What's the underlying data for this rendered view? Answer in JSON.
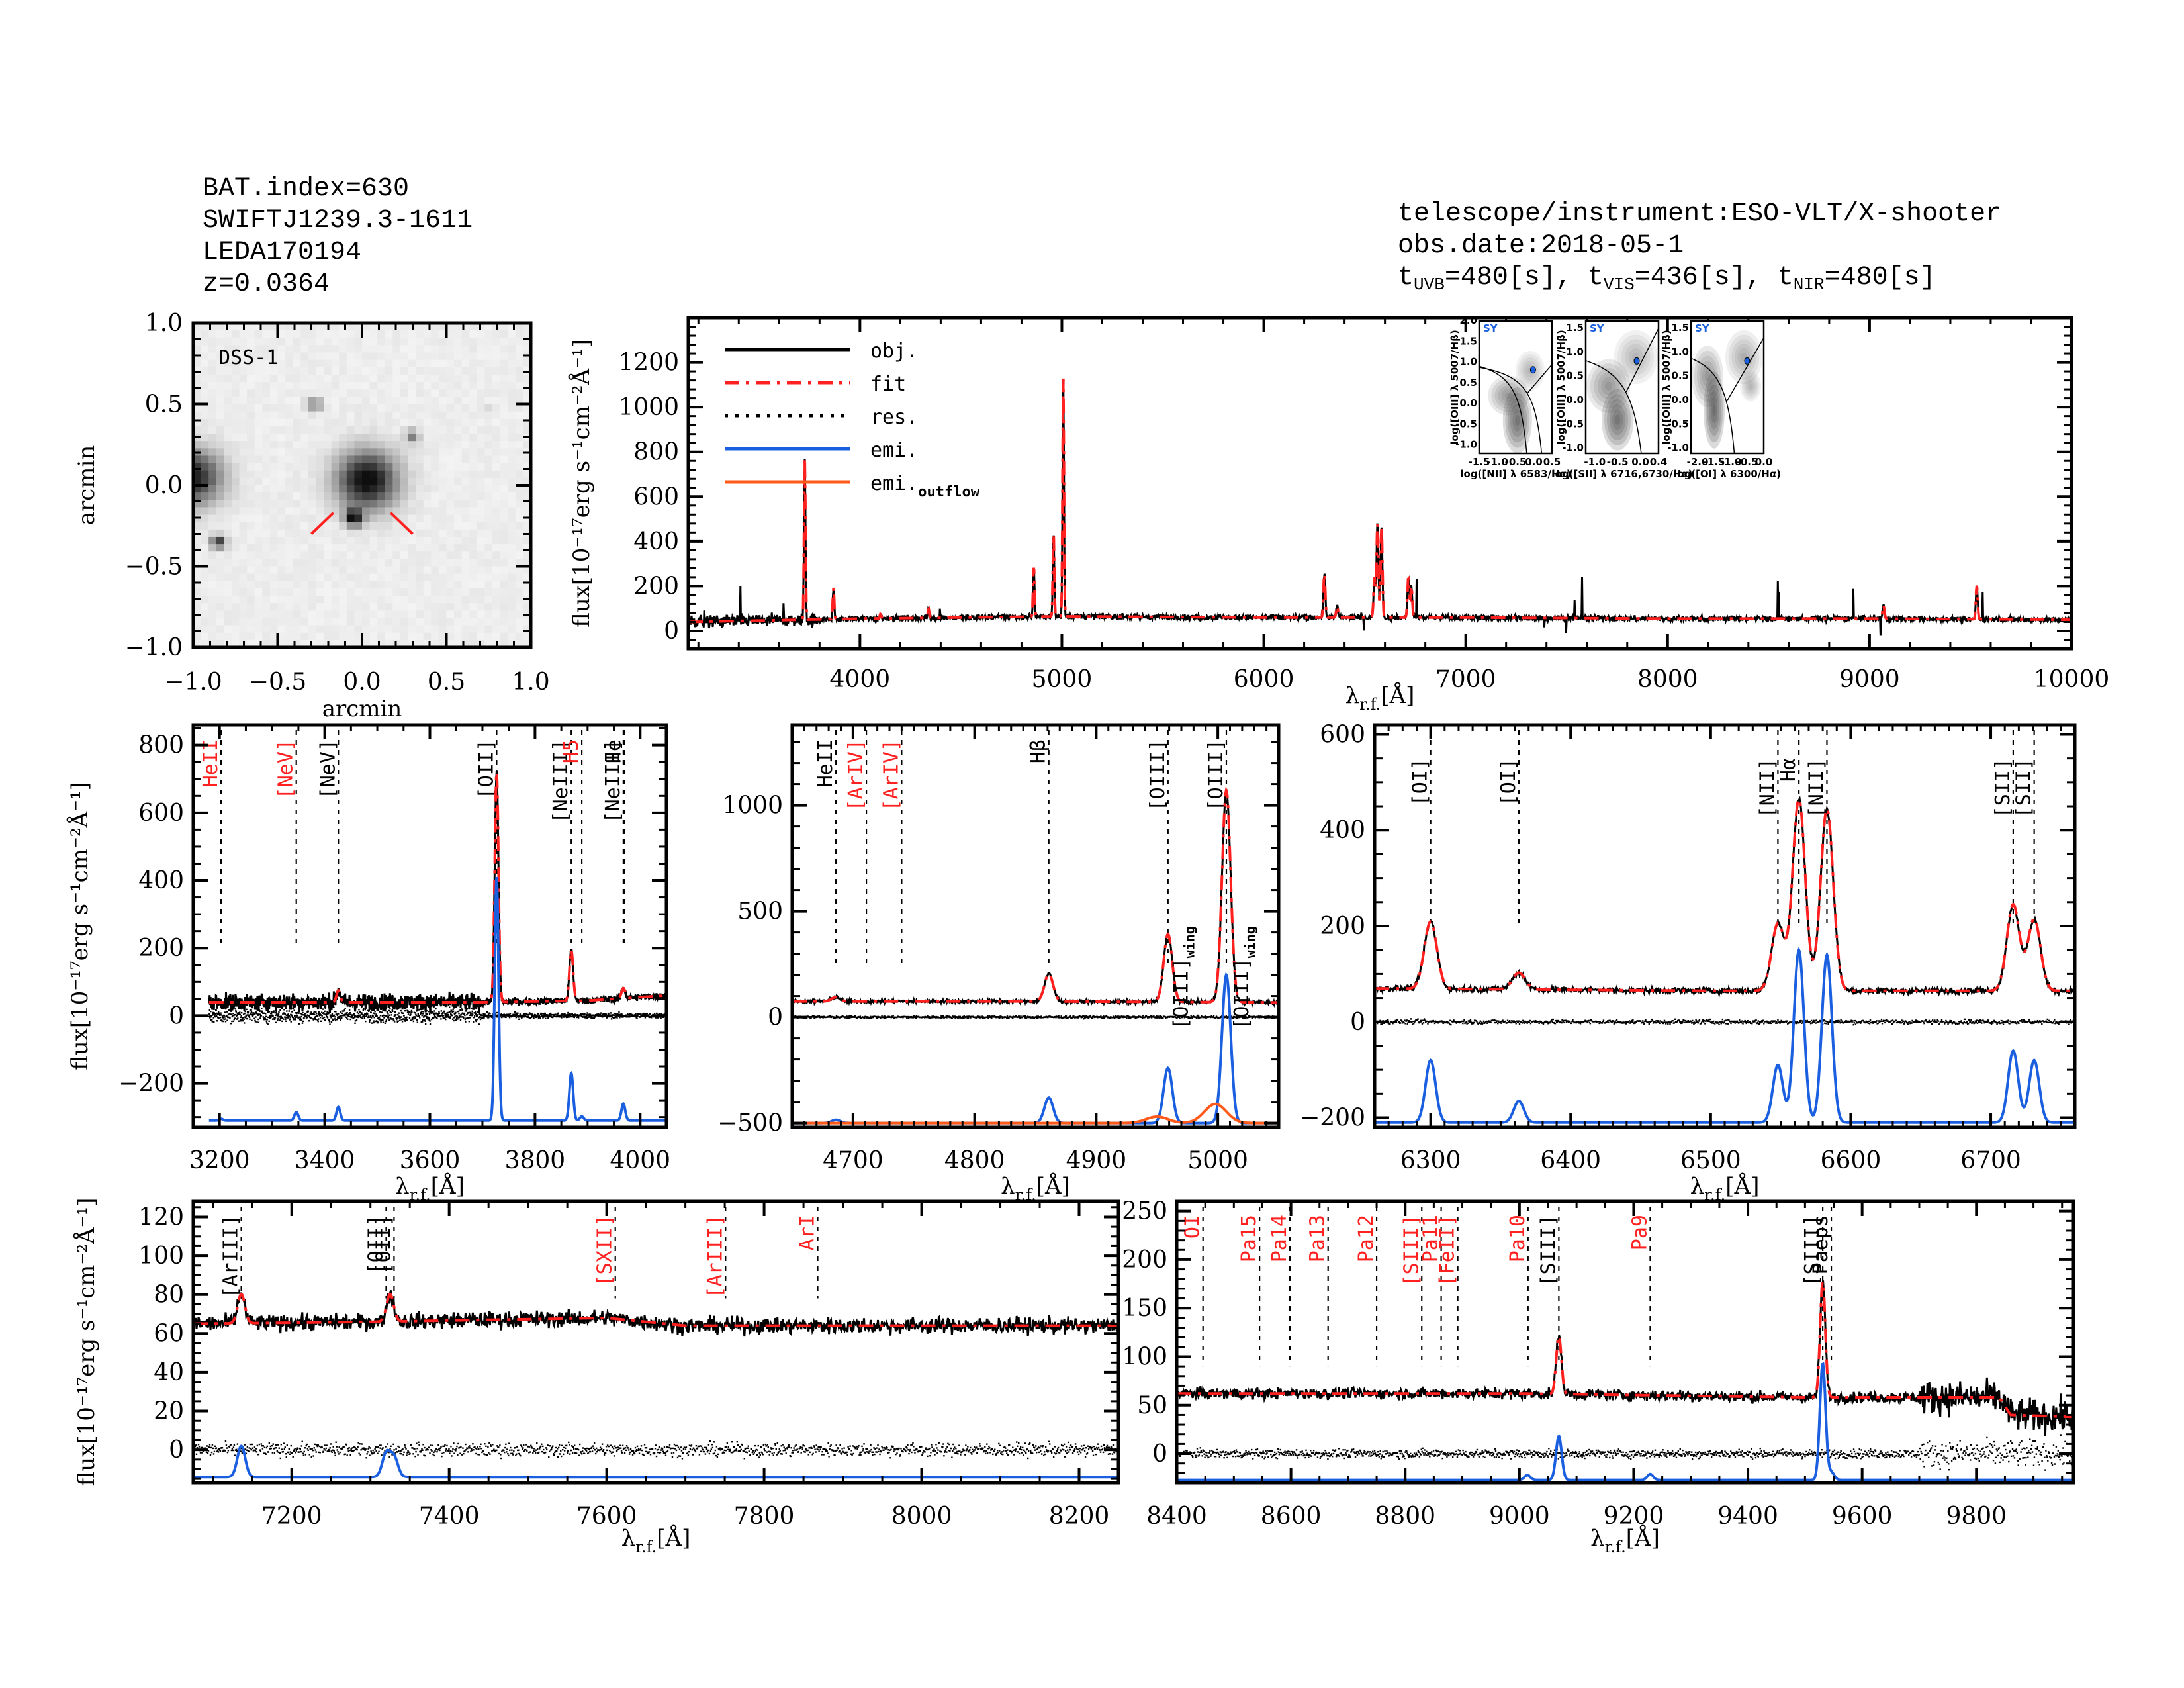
{
  "header_left": {
    "bat_index": "BAT.index=630",
    "swift_name": "SWIFTJ1239.3-1611",
    "counterpart": "LEDA170194",
    "redshift": "z=0.0364"
  },
  "header_right": {
    "instrument": "telescope/instrument:ESO-VLT/X-shooter",
    "obs_date": "obs.date:2018-05-1",
    "exposures": [
      {
        "prefix": "t",
        "band": "UVB",
        "value": "=480[s]"
      },
      {
        "prefix": "t",
        "band": "VIS",
        "value": "=436[s]"
      },
      {
        "prefix": "t",
        "band": "NIR",
        "value": "=480[s]"
      }
    ]
  },
  "colors": {
    "obj": "#000000",
    "fit": "#ff2020",
    "res": "#000000",
    "emi": "#1a5fe0",
    "emi_outflow": "#ff5a1a",
    "line_label_red": "#ff2020",
    "sy_marker": "#1a5fe0"
  },
  "chart_data": [
    {
      "id": "image",
      "type": "heatmap",
      "title": "DSS-1",
      "xlabel": "arcmin",
      "ylabel": "arcmin",
      "xlim": [
        -1.0,
        1.0
      ],
      "ylim": [
        -1.0,
        1.0
      ],
      "xticks": [
        "-1.0",
        "-0.5",
        "0.0",
        "0.5",
        "1.0"
      ],
      "yticks": [
        "-1.0",
        "-0.5",
        "0.0",
        "0.5",
        "1.0"
      ],
      "sources": [
        {
          "x": 0.03,
          "y": 0.03,
          "r": 0.17,
          "peak": 1.0
        },
        {
          "x": -0.05,
          "y": -0.2,
          "r": 0.05,
          "peak": 0.9
        },
        {
          "x": -1.0,
          "y": 0.05,
          "r": 0.16,
          "peak": 0.9
        },
        {
          "x": -0.85,
          "y": -0.35,
          "r": 0.04,
          "peak": 0.8
        },
        {
          "x": -0.28,
          "y": 0.5,
          "r": 0.04,
          "peak": 0.5
        },
        {
          "x": 0.3,
          "y": 0.3,
          "r": 0.04,
          "peak": 0.45
        },
        {
          "x": 0.73,
          "y": 0.47,
          "r": 0.02,
          "peak": 0.2
        }
      ]
    },
    {
      "id": "full",
      "type": "line",
      "xlabel": "λr.f.[Å]",
      "ylabel": "flux[10⁻¹⁷erg s⁻¹cm⁻²Å⁻¹]",
      "xlim": [
        3150,
        10000
      ],
      "ylim": [
        -80,
        1400
      ],
      "xticks": [
        4000,
        5000,
        6000,
        7000,
        8000,
        9000,
        10000
      ],
      "yticks": [
        0,
        200,
        400,
        600,
        800,
        1000,
        1200
      ],
      "legend": {
        "placement": "top-left",
        "entries": [
          "obj.",
          "fit",
          "res.",
          "emi.",
          "emi.outflow"
        ]
      },
      "continuum": [
        [
          3150,
          40
        ],
        [
          4000,
          55
        ],
        [
          5000,
          65
        ],
        [
          6000,
          60
        ],
        [
          7000,
          60
        ],
        [
          8000,
          55
        ],
        [
          9000,
          55
        ],
        [
          10000,
          50
        ]
      ],
      "lines": [
        [
          3727,
          720
        ],
        [
          3869,
          140
        ],
        [
          4102,
          20
        ],
        [
          4340,
          40
        ],
        [
          4861,
          230
        ],
        [
          4959,
          380
        ],
        [
          5007,
          1070
        ],
        [
          6300,
          200
        ],
        [
          6363,
          50
        ],
        [
          6548,
          180
        ],
        [
          6563,
          430
        ],
        [
          6583,
          410
        ],
        [
          6716,
          180
        ],
        [
          6731,
          140
        ],
        [
          9069,
          60
        ],
        [
          9531,
          150
        ]
      ]
    },
    {
      "id": "uv",
      "type": "line",
      "xlabel": "λr.f.[Å]",
      "xlim": [
        3150,
        4050
      ],
      "ylim": [
        -330,
        860
      ],
      "xticks": [
        3200,
        3400,
        3600,
        3800,
        4000
      ],
      "yticks": [
        -200,
        0,
        200,
        400,
        600,
        800
      ],
      "continuum": [
        [
          3180,
          40
        ],
        [
          3400,
          40
        ],
        [
          3700,
          40
        ],
        [
          3900,
          45
        ],
        [
          4050,
          60
        ]
      ],
      "lines": [
        [
          3426,
          35
        ],
        [
          3727,
          680
        ],
        [
          3869,
          150
        ],
        [
          3968,
          30
        ]
      ],
      "emi_baseline": -310,
      "emi": [
        [
          3203,
          5
        ],
        [
          3346,
          25
        ],
        [
          3426,
          40
        ],
        [
          3727,
          720
        ],
        [
          3869,
          140
        ],
        [
          3889,
          12
        ],
        [
          3968,
          50
        ]
      ],
      "marker_lines": [
        {
          "wl": 3203,
          "label": "HeII",
          "color": "red"
        },
        {
          "wl": 3346,
          "label": "[NeV]",
          "color": "red"
        },
        {
          "wl": 3426,
          "label": "[NeV]",
          "color": "black"
        },
        {
          "wl": 3727,
          "label": "[OII]",
          "color": "black"
        },
        {
          "wl": 3869,
          "label": "[NeIII]",
          "color": "black"
        },
        {
          "wl": 3889,
          "label": "H5",
          "color": "red"
        },
        {
          "wl": 3968,
          "label": "[NeIII]",
          "color": "black"
        },
        {
          "wl": 3970,
          "label": "He",
          "color": "black"
        }
      ]
    },
    {
      "id": "hb",
      "type": "line",
      "xlabel": "λr.f.[Å]",
      "xlim": [
        4650,
        5050
      ],
      "ylim": [
        -520,
        1380
      ],
      "xticks": [
        4700,
        4800,
        4900,
        5000
      ],
      "yticks": [
        -500,
        0,
        500,
        1000
      ],
      "continuum": [
        [
          4650,
          75
        ],
        [
          4850,
          75
        ],
        [
          5050,
          70
        ]
      ],
      "lines": [
        [
          4686,
          20
        ],
        [
          4861,
          130
        ],
        [
          4959,
          320
        ],
        [
          5007,
          1000
        ]
      ],
      "emi_baseline": -500,
      "emi": [
        [
          4686,
          15
        ],
        [
          4861,
          120
        ],
        [
          4959,
          260
        ],
        [
          5007,
          700
        ]
      ],
      "outflow": [
        [
          4950,
          30
        ],
        [
          4998,
          90
        ]
      ],
      "marker_lines": [
        {
          "wl": 4686,
          "label": "HeII",
          "color": "black"
        },
        {
          "wl": 4711,
          "label": "[ArIV]",
          "color": "red"
        },
        {
          "wl": 4740,
          "label": "[ArIV]",
          "color": "red"
        },
        {
          "wl": 4861,
          "label": "Hβ",
          "color": "black"
        },
        {
          "wl": 4959,
          "label": "[OIII]",
          "color": "black"
        },
        {
          "wl": 5007,
          "label": "[OIII]",
          "color": "black"
        }
      ],
      "wing_labels": [
        {
          "wl": 4962,
          "label": "[OIII]",
          "sub": "wing"
        },
        {
          "wl": 5012,
          "label": "[OIII]",
          "sub": "wing"
        }
      ]
    },
    {
      "id": "ha",
      "type": "line",
      "xlabel": "λr.f.[Å]",
      "xlim": [
        6260,
        6760
      ],
      "ylim": [
        -220,
        620
      ],
      "xticks": [
        6300,
        6400,
        6500,
        6600,
        6700
      ],
      "yticks": [
        -200,
        0,
        200,
        400,
        600
      ],
      "continuum": [
        [
          6260,
          70
        ],
        [
          6500,
          65
        ],
        [
          6760,
          65
        ]
      ],
      "lines": [
        [
          6300,
          140
        ],
        [
          6363,
          35
        ],
        [
          6548,
          140
        ],
        [
          6563,
          400
        ],
        [
          6583,
          380
        ],
        [
          6716,
          180
        ],
        [
          6731,
          150
        ]
      ],
      "emi_baseline": -210,
      "emi": [
        [
          6300,
          130
        ],
        [
          6363,
          45
        ],
        [
          6548,
          120
        ],
        [
          6563,
          360
        ],
        [
          6583,
          350
        ],
        [
          6716,
          150
        ],
        [
          6731,
          130
        ]
      ],
      "marker_lines": [
        {
          "wl": 6300,
          "label": "[OI]",
          "color": "black"
        },
        {
          "wl": 6363,
          "label": "[OI]",
          "color": "black"
        },
        {
          "wl": 6548,
          "label": "[NII]",
          "color": "black"
        },
        {
          "wl": 6563,
          "label": "Hα",
          "color": "black"
        },
        {
          "wl": 6583,
          "label": "[NII]",
          "color": "black"
        },
        {
          "wl": 6716,
          "label": "[SII]",
          "color": "black"
        },
        {
          "wl": 6731,
          "label": "[SII]",
          "color": "black"
        }
      ]
    },
    {
      "id": "red",
      "type": "line",
      "xlabel": "λr.f.[Å]",
      "ylabel": "flux[10⁻¹⁷erg s⁻¹cm⁻²Å⁻¹]",
      "xlim": [
        7075,
        8250
      ],
      "ylim": [
        -17,
        128
      ],
      "xticks": [
        7200,
        7400,
        7600,
        7800,
        8000,
        8200
      ],
      "yticks": [
        0,
        20,
        40,
        60,
        80,
        100,
        120
      ],
      "continuum": [
        [
          7075,
          65
        ],
        [
          7300,
          66
        ],
        [
          7600,
          68
        ],
        [
          7700,
          64
        ],
        [
          8250,
          64
        ]
      ],
      "lines": [
        [
          7136,
          15
        ],
        [
          7325,
          14
        ]
      ],
      "emi_baseline": -14,
      "emi": [
        [
          7136,
          16
        ],
        [
          7320,
          12
        ],
        [
          7330,
          10
        ]
      ],
      "marker_lines": [
        {
          "wl": 7136,
          "label": "[ArIII]",
          "color": "black"
        },
        {
          "wl": 7320,
          "label": "[OII]",
          "color": "black"
        },
        {
          "wl": 7330,
          "label": "[OII]",
          "color": "black"
        },
        {
          "wl": 7611,
          "label": "[SXII]",
          "color": "red"
        },
        {
          "wl": 7751,
          "label": "[ArIII]",
          "color": "red"
        },
        {
          "wl": 7868,
          "label": "ArI",
          "color": "red"
        }
      ]
    },
    {
      "id": "nir",
      "type": "line",
      "xlabel": "λr.f.[Å]",
      "xlim": [
        8400,
        9970
      ],
      "ylim": [
        -30,
        260
      ],
      "xticks": [
        8400,
        8600,
        8800,
        9000,
        9200,
        9400,
        9600,
        9800
      ],
      "yticks": [
        0,
        50,
        100,
        150,
        200,
        250
      ],
      "continuum": [
        [
          8400,
          62
        ],
        [
          9000,
          62
        ],
        [
          9500,
          58
        ],
        [
          9840,
          58
        ],
        [
          9860,
          40
        ],
        [
          9970,
          38
        ]
      ],
      "lines": [
        [
          9069,
          60
        ],
        [
          9531,
          120
        ]
      ],
      "emi_baseline": -27,
      "emi": [
        [
          9014,
          5
        ],
        [
          9069,
          45
        ],
        [
          9229,
          6
        ],
        [
          9531,
          120
        ],
        [
          9546,
          8
        ]
      ],
      "marker_lines": [
        {
          "wl": 8446,
          "label": "OI",
          "color": "red"
        },
        {
          "wl": 8545,
          "label": "Pa15",
          "color": "red"
        },
        {
          "wl": 8598,
          "label": "Pa14",
          "color": "red"
        },
        {
          "wl": 8665,
          "label": "Pa13",
          "color": "red"
        },
        {
          "wl": 8750,
          "label": "Pa12",
          "color": "red"
        },
        {
          "wl": 8829,
          "label": "[SIII]",
          "color": "red"
        },
        {
          "wl": 8863,
          "label": "Pa11",
          "color": "red"
        },
        {
          "wl": 8892,
          "label": "[FeII]",
          "color": "red"
        },
        {
          "wl": 9015,
          "label": "Pa10",
          "color": "red"
        },
        {
          "wl": 9069,
          "label": "[SIII]",
          "color": "black"
        },
        {
          "wl": 9229,
          "label": "Pa9",
          "color": "red"
        },
        {
          "wl": 9531,
          "label": "[SIII]",
          "color": "black"
        },
        {
          "wl": 9546,
          "label": "Paeps",
          "color": "black"
        }
      ]
    },
    {
      "id": "bpt_nii",
      "type": "heatmap",
      "class_label": "SY",
      "xlabel": "log([NII] λ 6583/Hα)",
      "ylabel": "log([OIII] λ 5007/Hβ)",
      "xlim": [
        -1.5,
        0.5
      ],
      "ylim": [
        -1.2,
        2.0
      ],
      "xticks": [
        "-1.5",
        "-1.0",
        "-0.5",
        "0.0",
        "0.5"
      ],
      "yticks": [
        "-1.0",
        "-0.5",
        "0.0",
        "0.5",
        "1.0",
        "1.5",
        "2.0"
      ],
      "point": {
        "x": -0.02,
        "y": 0.82
      }
    },
    {
      "id": "bpt_sii",
      "type": "heatmap",
      "class_label": "SY",
      "xlabel": "log([SII] λ 6716,6730/Hα)",
      "ylabel": "log([OIII] λ 5007/Hβ)",
      "xlim": [
        -1.2,
        0.4
      ],
      "ylim": [
        -1.1,
        1.65
      ],
      "xticks": [
        "-1.0",
        "-0.5",
        "0.0",
        "0.4"
      ],
      "yticks": [
        "-1.0",
        "-0.5",
        "0.0",
        "0.5",
        "1.0",
        "1.5"
      ],
      "point": {
        "x": -0.08,
        "y": 0.82
      }
    },
    {
      "id": "bpt_oi",
      "type": "heatmap",
      "class_label": "SY",
      "xlabel": "log([OI] λ 6300/Hα)",
      "ylabel": "log([OIII] λ 5007/Hβ)",
      "xlim": [
        -2.2,
        0.0
      ],
      "ylim": [
        -1.1,
        1.65
      ],
      "xticks": [
        "-2.0",
        "-1.5",
        "-1.0",
        "-0.5",
        "0.0"
      ],
      "yticks": [
        "-1.0",
        "-0.5",
        "0.0",
        "0.5",
        "1.0",
        "1.5"
      ],
      "point": {
        "x": -0.5,
        "y": 0.82
      }
    }
  ]
}
